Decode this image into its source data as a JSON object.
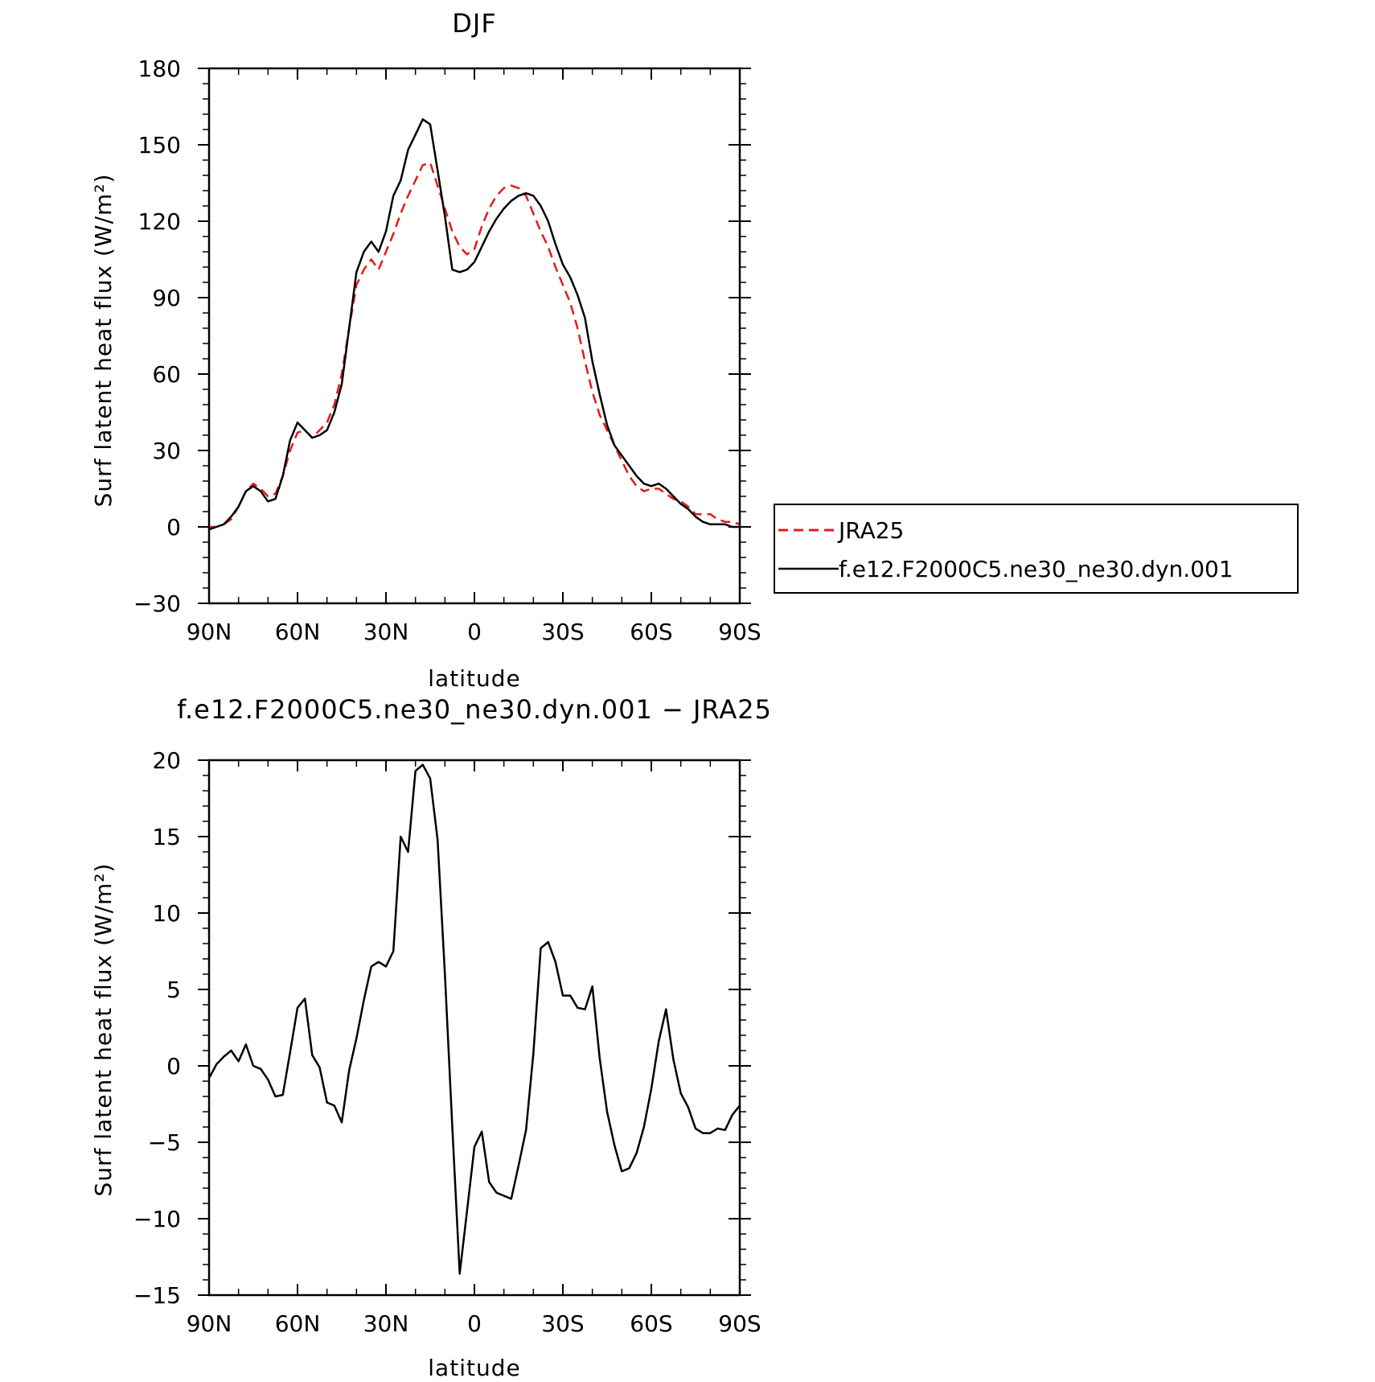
{
  "chart_data": [
    {
      "type": "line",
      "title": "DJF",
      "xlabel": "latitude",
      "ylabel": "Surf latent heat flux (W/m²)",
      "xlim": [
        90,
        -90
      ],
      "ylim": [
        -30,
        180
      ],
      "xticks": [
        90,
        60,
        30,
        0,
        -30,
        -60,
        -90
      ],
      "xtick_labels": [
        "90N",
        "60N",
        "30N",
        "0",
        "30S",
        "60S",
        "90S"
      ],
      "yticks": [
        -30,
        0,
        30,
        60,
        90,
        120,
        150,
        180
      ],
      "ytick_labels": [
        "−30",
        "0",
        "30",
        "60",
        "90",
        "120",
        "150",
        "180"
      ],
      "grid": false,
      "legend": "right",
      "series": [
        {
          "name": "JRA25",
          "color": "#e41a1c",
          "dash": true,
          "x": [
            90,
            87.5,
            85,
            82.5,
            80,
            77.5,
            75,
            72.5,
            70,
            67.5,
            65,
            62.5,
            60,
            57.5,
            55,
            52.5,
            50,
            47.5,
            45,
            42.5,
            40,
            37.5,
            35,
            32.5,
            30,
            27.5,
            25,
            22.5,
            20,
            17.5,
            15,
            12.5,
            10,
            7.5,
            5,
            2.5,
            0,
            -2.5,
            -5,
            -7.5,
            -10,
            -12.5,
            -15,
            -17.5,
            -20,
            -22.5,
            -25,
            -27.5,
            -30,
            -32.5,
            -35,
            -37.5,
            -40,
            -42.5,
            -45,
            -47.5,
            -50,
            -52.5,
            -55,
            -57.5,
            -60,
            -62.5,
            -65,
            -67.5,
            -70,
            -72.5,
            -75,
            -77.5,
            -80,
            -82.5,
            -85,
            -87.5,
            -90
          ],
          "values": [
            0,
            0,
            1,
            3,
            8,
            14,
            17,
            15,
            12,
            13,
            20,
            30,
            37,
            38,
            35,
            38,
            41,
            48,
            60,
            78,
            95,
            101,
            105,
            101,
            108,
            115,
            123,
            130,
            136,
            142,
            143,
            134,
            125,
            116,
            110,
            107,
            109,
            118,
            125,
            130,
            133,
            134,
            133,
            130,
            123,
            116,
            110,
            102,
            95,
            88,
            78,
            65,
            53,
            44,
            38,
            32,
            26,
            20,
            16,
            14,
            15,
            15,
            13,
            11,
            10,
            8,
            5,
            5,
            5,
            3,
            2,
            2,
            1
          ]
        },
        {
          "name": "f.e12.F2000C5.ne30_ne30.dyn.001",
          "color": "#000000",
          "dash": false,
          "x": [
            90,
            87.5,
            85,
            82.5,
            80,
            77.5,
            75,
            72.5,
            70,
            67.5,
            65,
            62.5,
            60,
            57.5,
            55,
            52.5,
            50,
            47.5,
            45,
            42.5,
            40,
            37.5,
            35,
            32.5,
            30,
            27.5,
            25,
            22.5,
            20,
            17.5,
            15,
            12.5,
            10,
            7.5,
            5,
            2.5,
            0,
            -2.5,
            -5,
            -7.5,
            -10,
            -12.5,
            -15,
            -17.5,
            -20,
            -22.5,
            -25,
            -27.5,
            -30,
            -32.5,
            -35,
            -37.5,
            -40,
            -42.5,
            -45,
            -47.5,
            -50,
            -52.5,
            -55,
            -57.5,
            -60,
            -62.5,
            -65,
            -67.5,
            -70,
            -72.5,
            -75,
            -77.5,
            -80,
            -82.5,
            -85,
            -87.5,
            -90
          ],
          "values": [
            -1,
            0,
            1,
            4,
            8,
            14,
            16,
            14,
            10,
            11,
            20,
            34,
            41,
            38,
            35,
            36,
            38,
            45,
            56,
            78,
            100,
            108,
            112,
            108,
            116,
            130,
            136,
            148,
            154,
            160,
            158,
            140,
            122,
            101,
            100,
            101,
            104,
            110,
            116,
            121,
            125,
            128,
            130,
            131,
            130,
            126,
            120,
            111,
            103,
            98,
            91,
            82,
            65,
            52,
            40,
            32,
            28,
            24,
            20,
            17,
            16,
            17,
            15,
            12,
            9,
            7,
            4,
            2,
            1,
            1,
            1,
            0,
            0
          ]
        }
      ]
    },
    {
      "type": "line",
      "title": "f.e12.F2000C5.ne30_ne30.dyn.001 − JRA25",
      "xlabel": "latitude",
      "ylabel": "Surf latent heat flux (W/m²)",
      "xlim": [
        90,
        -90
      ],
      "ylim": [
        -15,
        20
      ],
      "xticks": [
        90,
        60,
        30,
        0,
        -30,
        -60,
        -90
      ],
      "xtick_labels": [
        "90N",
        "60N",
        "30N",
        "0",
        "30S",
        "60S",
        "90S"
      ],
      "yticks": [
        -15,
        -10,
        -5,
        0,
        5,
        10,
        15,
        20
      ],
      "ytick_labels": [
        "−15",
        "−10",
        "−5",
        "0",
        "5",
        "10",
        "15",
        "20"
      ],
      "grid": false,
      "series": [
        {
          "color": "#000000",
          "dash": false,
          "x": [
            90,
            87.5,
            85,
            82.5,
            80,
            77.5,
            75,
            72.5,
            70,
            67.5,
            65,
            62.5,
            60,
            57.5,
            55,
            52.5,
            50,
            47.5,
            45,
            42.5,
            40,
            37.5,
            35,
            32.5,
            30,
            27.5,
            25,
            22.5,
            20,
            17.5,
            15,
            12.5,
            10,
            7.5,
            5,
            2.5,
            0,
            -2.5,
            -5,
            -7.5,
            -10,
            -12.5,
            -15,
            -17.5,
            -20,
            -22.5,
            -25,
            -27.5,
            -30,
            -32.5,
            -35,
            -37.5,
            -40,
            -42.5,
            -45,
            -47.5,
            -50,
            -52.5,
            -55,
            -57.5,
            -60,
            -62.5,
            -65,
            -67.5,
            -70,
            -72.5,
            -75,
            -77.5,
            -80,
            -82.5,
            -85,
            -87.5,
            -90
          ],
          "values": [
            -0.8,
            0.1,
            0.6,
            1.0,
            0.3,
            1.4,
            0.0,
            -0.2,
            -0.9,
            -2.0,
            -1.9,
            0.9,
            3.8,
            4.4,
            0.7,
            -0.1,
            -2.4,
            -2.6,
            -3.7,
            -0.3,
            1.8,
            4.3,
            6.5,
            6.8,
            6.5,
            7.5,
            15.0,
            14.0,
            19.3,
            19.7,
            18.8,
            14.8,
            6.0,
            -4.0,
            -13.6,
            -9.5,
            -5.3,
            -4.3,
            -7.6,
            -8.3,
            -8.5,
            -8.7,
            -6.5,
            -4.2,
            0.8,
            7.7,
            8.1,
            6.8,
            4.6,
            4.6,
            3.8,
            3.7,
            5.2,
            0.5,
            -3.0,
            -5.2,
            -6.9,
            -6.7,
            -5.7,
            -4.0,
            -1.5,
            1.6,
            3.7,
            0.4,
            -1.8,
            -2.7,
            -4.1,
            -4.4,
            -4.4,
            -4.1,
            -4.2,
            -3.2,
            -2.6
          ]
        }
      ]
    }
  ]
}
